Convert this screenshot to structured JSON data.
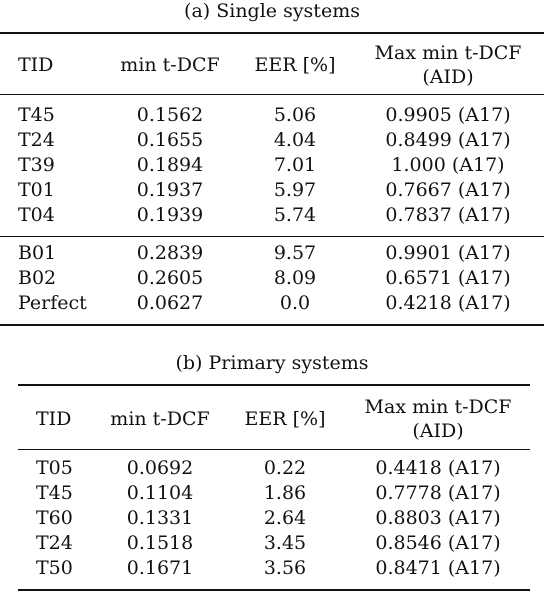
{
  "tables": [
    {
      "caption": "(a)  Single systems",
      "headers": [
        "TID",
        "min t-DCF",
        "EER [%]",
        "Max min t-DCF",
        "(AID)"
      ],
      "groups": [
        [
          [
            "T45",
            "0.1562",
            "5.06",
            "0.9905 (A17)"
          ],
          [
            "T24",
            "0.1655",
            "4.04",
            "0.8499 (A17)"
          ],
          [
            "T39",
            "0.1894",
            "7.01",
            "1.000 (A17)"
          ],
          [
            "T01",
            "0.1937",
            "5.97",
            "0.7667 (A17)"
          ],
          [
            "T04",
            "0.1939",
            "5.74",
            "0.7837 (A17)"
          ]
        ],
        [
          [
            "B01",
            "0.2839",
            "9.57",
            "0.9901 (A17)"
          ],
          [
            "B02",
            "0.2605",
            "8.09",
            "0.6571 (A17)"
          ],
          [
            "Perfect",
            "0.0627",
            "0.0",
            "0.4218 (A17)"
          ]
        ]
      ]
    },
    {
      "caption": "(b)  Primary systems",
      "headers": [
        "TID",
        "min t-DCF",
        "EER [%]",
        "Max min t-DCF",
        "(AID)"
      ],
      "groups": [
        [
          [
            "T05",
            "0.0692",
            "0.22",
            "0.4418 (A17)"
          ],
          [
            "T45",
            "0.1104",
            "1.86",
            "0.7778 (A17)"
          ],
          [
            "T60",
            "0.1331",
            "2.64",
            "0.8803 (A17)"
          ],
          [
            "T24",
            "0.1518",
            "3.45",
            "0.8546 (A17)"
          ],
          [
            "T50",
            "0.1671",
            "3.56",
            "0.8471 (A17)"
          ]
        ]
      ]
    }
  ]
}
